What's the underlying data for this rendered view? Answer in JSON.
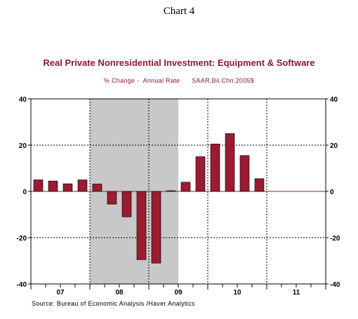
{
  "chart_number": "Chart 4",
  "source": "Source:  Bureau of Economic Analysis /Haver Analytics",
  "colors": {
    "bar_fill": "#9b1b30",
    "bar_stroke": "#000000",
    "recession_shade": "#c8c8c8",
    "zero_line": "#9b1b30",
    "title": "#8b1a2b"
  },
  "chart_data": {
    "type": "bar",
    "title": "Real Private Nonresidential Investment: Equipment & Software",
    "subtitle": "% Change -  Annual Rate      SAAR,Bil.Chn.2005$",
    "xlabel": "",
    "ylabel": "",
    "ylim": [
      -40,
      40
    ],
    "y_ticks": [
      "40",
      "20",
      "0",
      "-20",
      "-40"
    ],
    "y_tick_values": [
      40,
      20,
      0,
      -20,
      -40
    ],
    "year_labels": [
      "07",
      "08",
      "09",
      "10",
      "11"
    ],
    "categories": [
      "2007Q1",
      "2007Q2",
      "2007Q3",
      "2007Q4",
      "2008Q1",
      "2008Q2",
      "2008Q3",
      "2008Q4",
      "2009Q1",
      "2009Q2",
      "2009Q3",
      "2009Q4",
      "2010Q1",
      "2010Q2",
      "2010Q3",
      "2010Q4"
    ],
    "values": [
      5.0,
      4.5,
      3.3,
      5.0,
      3.2,
      -5.5,
      -11.0,
      -29.5,
      -31.0,
      0.3,
      4.0,
      15.0,
      20.5,
      25.0,
      15.5,
      5.5
    ],
    "recession": [
      "2008Q1",
      "2009Q2"
    ],
    "grid": true,
    "dual_y_axis": true
  }
}
